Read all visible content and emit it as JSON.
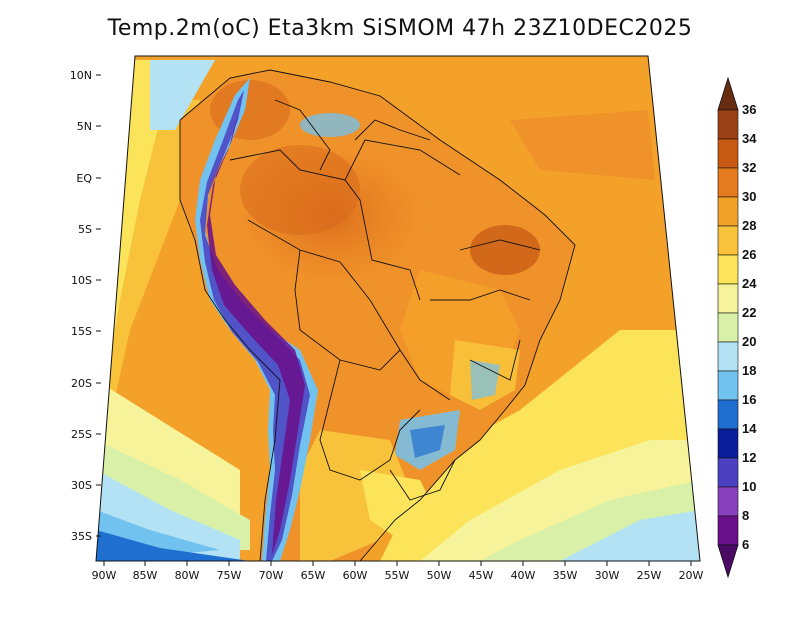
{
  "title": "Temp.2m(oC) Eta3km SiSMOM 47h 23Z10DEC2025",
  "latitude_labels": [
    "10N",
    "5N",
    "EQ",
    "5S",
    "10S",
    "15S",
    "20S",
    "25S",
    "30S",
    "35S"
  ],
  "longitude_labels": [
    "90W",
    "85W",
    "80W",
    "75W",
    "70W",
    "65W",
    "60W",
    "55W",
    "50W",
    "45W",
    "40W",
    "35W",
    "30W",
    "25W",
    "20W"
  ],
  "colorbar": {
    "labels": [
      "36",
      "34",
      "32",
      "30",
      "28",
      "26",
      "24",
      "22",
      "20",
      "18",
      "16",
      "14",
      "12",
      "10",
      "8",
      "6"
    ],
    "colors": [
      "#6a2c10",
      "#9c4016",
      "#c85a14",
      "#e67a1e",
      "#f4a12a",
      "#f8c33a",
      "#fbe45a",
      "#f6f39a",
      "#d9f0a8",
      "#b3e2f4",
      "#72c2f0",
      "#1f6fd0",
      "#0a1e9c",
      "#4b3fc2",
      "#8a3fbe",
      "#6a0f8a",
      "#4a0a66"
    ]
  }
}
